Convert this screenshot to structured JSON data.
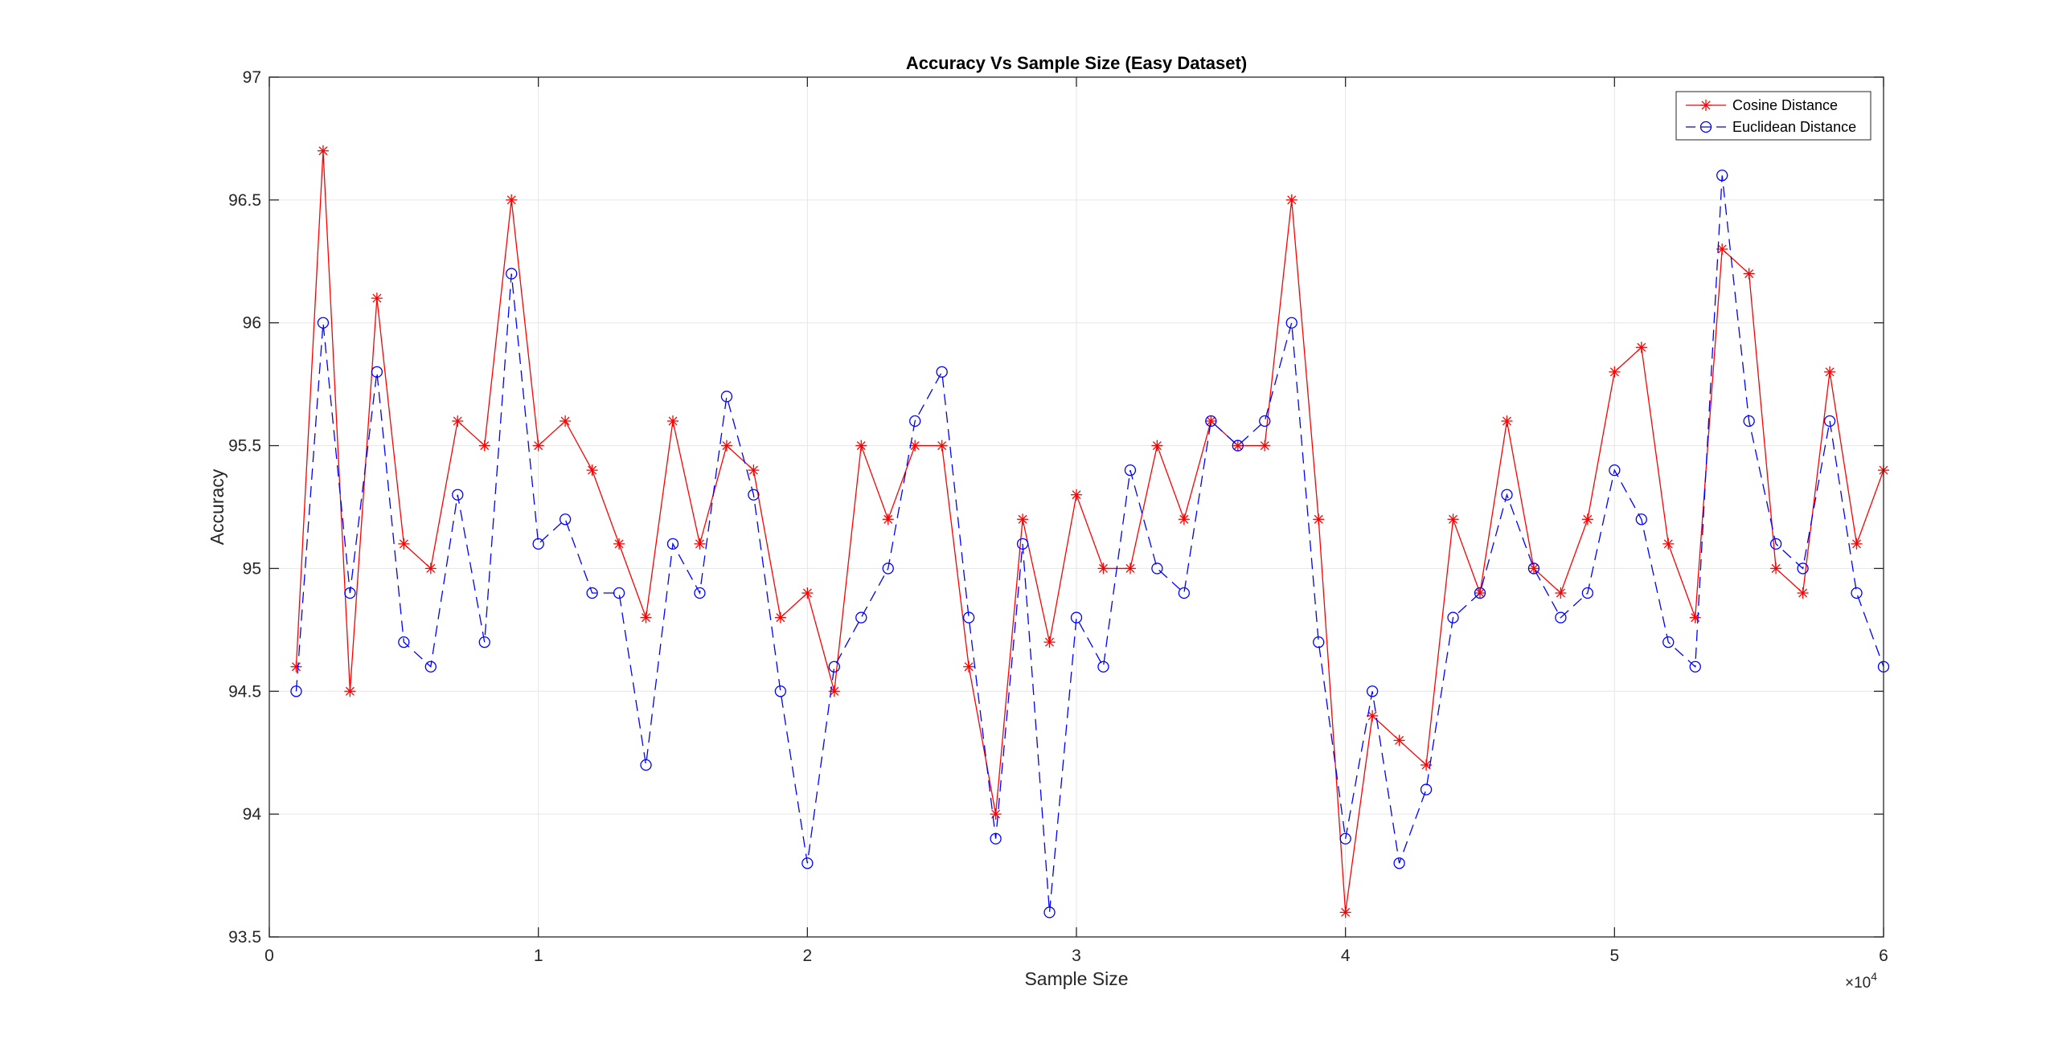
{
  "chart_data": {
    "type": "line",
    "title": "Accuracy Vs Sample Size (Easy Dataset)",
    "xlabel": "Sample Size",
    "ylabel": "Accuracy",
    "xlim": [
      0,
      60000
    ],
    "ylim": [
      93.5,
      97
    ],
    "x_exponent_label": "×10",
    "x_exponent_power": "4",
    "xticks": [
      0,
      10000,
      20000,
      30000,
      40000,
      50000,
      60000
    ],
    "xtick_labels": [
      "0",
      "1",
      "2",
      "3",
      "4",
      "5",
      "6"
    ],
    "yticks": [
      93.5,
      94,
      94.5,
      95,
      95.5,
      96,
      96.5,
      97
    ],
    "ytick_labels": [
      "93.5",
      "94",
      "94.5",
      "95",
      "95.5",
      "96",
      "96.5",
      "97"
    ],
    "grid": true,
    "legend_position": "top-right",
    "x": [
      1000,
      2000,
      3000,
      4000,
      5000,
      6000,
      7000,
      8000,
      9000,
      10000,
      11000,
      12000,
      13000,
      14000,
      15000,
      16000,
      17000,
      18000,
      19000,
      20000,
      21000,
      22000,
      23000,
      24000,
      25000,
      26000,
      27000,
      28000,
      29000,
      30000,
      31000,
      32000,
      33000,
      34000,
      35000,
      36000,
      37000,
      38000,
      39000,
      40000,
      41000,
      42000,
      43000,
      44000,
      45000,
      46000,
      47000,
      48000,
      49000,
      50000,
      51000,
      52000,
      53000,
      54000,
      55000,
      56000,
      57000,
      58000,
      59000,
      60000
    ],
    "series": [
      {
        "name": "Cosine Distance",
        "color": "#ff0000",
        "marker": "asterisk",
        "line_style": "solid",
        "values": [
          94.6,
          96.7,
          94.5,
          96.1,
          95.1,
          95.0,
          95.6,
          95.5,
          96.5,
          95.5,
          95.6,
          95.4,
          95.1,
          94.8,
          95.6,
          95.1,
          95.5,
          95.4,
          94.8,
          94.9,
          94.5,
          95.5,
          95.2,
          95.5,
          95.5,
          94.6,
          94.0,
          95.2,
          94.7,
          95.3,
          95.0,
          95.0,
          95.5,
          95.2,
          95.6,
          95.5,
          95.5,
          96.5,
          95.2,
          93.6,
          94.4,
          94.3,
          94.2,
          95.2,
          94.9,
          95.6,
          95.0,
          94.9,
          95.2,
          95.8,
          95.9,
          95.1,
          94.8,
          96.3,
          96.2,
          95.0,
          94.9,
          95.8,
          95.1,
          95.4
        ]
      },
      {
        "name": "Euclidean Distance",
        "color": "#0000ff",
        "marker": "circle",
        "line_style": "dashed",
        "values": [
          94.5,
          96.0,
          94.9,
          95.8,
          94.7,
          94.6,
          95.3,
          94.7,
          96.2,
          95.1,
          95.2,
          94.9,
          94.9,
          94.2,
          95.1,
          94.9,
          95.7,
          95.3,
          94.5,
          93.8,
          94.6,
          94.8,
          95.0,
          95.6,
          95.8,
          94.8,
          93.9,
          95.1,
          93.6,
          94.8,
          94.6,
          95.4,
          95.0,
          94.9,
          95.6,
          95.5,
          95.6,
          96.0,
          94.7,
          93.9,
          94.5,
          93.8,
          94.1,
          94.8,
          94.9,
          95.3,
          95.0,
          94.8,
          94.9,
          95.4,
          95.2,
          94.7,
          94.6,
          96.6,
          95.6,
          95.1,
          95.0,
          95.6,
          94.9,
          94.6
        ]
      }
    ]
  }
}
